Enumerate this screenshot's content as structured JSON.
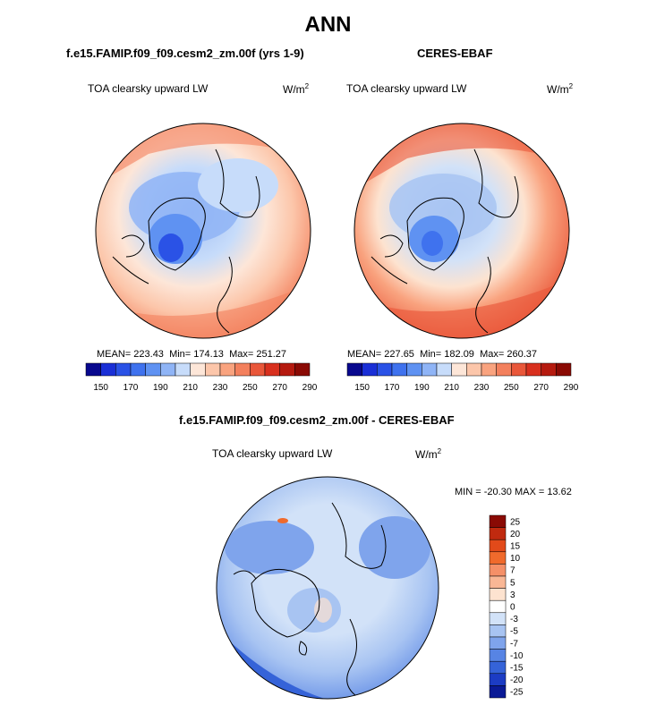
{
  "main_title": "ANN",
  "panels": [
    {
      "title": "f.e15.FAMIP.f09_f09.cesm2_zm.00f (yrs 1-9)",
      "variable": "TOA clearsky upward LW",
      "unit_base": "W/m",
      "unit_exp": "2",
      "mean_label": "MEAN=",
      "mean": "223.43",
      "min_label": "Min=",
      "min": "174.13",
      "max_label": "Max=",
      "max": "251.27"
    },
    {
      "title": "CERES-EBAF",
      "variable": "TOA clearsky upward LW",
      "unit_base": "W/m",
      "unit_exp": "2",
      "mean_label": "MEAN=",
      "mean": "227.65",
      "min_label": "Min=",
      "min": "182.09",
      "max_label": "Max=",
      "max": "260.37"
    }
  ],
  "diff_panel": {
    "title": "f.e15.FAMIP.f09_f09.cesm2_zm.00f - CERES-EBAF",
    "variable": "TOA clearsky upward LW",
    "unit_base": "W/m",
    "unit_exp": "2",
    "minmax": "MIN = -20.30 MAX =  13.62"
  },
  "colorbar_abs": {
    "colors": [
      "#08088e",
      "#1a2fd6",
      "#2a52e6",
      "#3f72ee",
      "#5f92f2",
      "#8fb4f6",
      "#c7dcfa",
      "#fde6d8",
      "#fcc6aa",
      "#f9a37f",
      "#f3805d",
      "#e9573a",
      "#d8301e",
      "#b51a0f",
      "#8a0a04"
    ],
    "tick_labels": [
      "150",
      "170",
      "190",
      "210",
      "230",
      "250",
      "270",
      "290"
    ]
  },
  "colorbar_diff": {
    "colors": [
      "#8a0a04",
      "#c02a0f",
      "#e24a1a",
      "#f06a2c",
      "#f59068",
      "#f9b795",
      "#fde3d0",
      "#ffffff",
      "#d2e2f8",
      "#a8c4f2",
      "#7fa4ec",
      "#5784e4",
      "#3563d8",
      "#1c3cc4",
      "#0a1a96"
    ],
    "labels": [
      "25",
      "20",
      "15",
      "10",
      "7",
      "5",
      "3",
      "0",
      "-3",
      "-5",
      "-7",
      "-10",
      "-15",
      "-20",
      "-25"
    ]
  }
}
